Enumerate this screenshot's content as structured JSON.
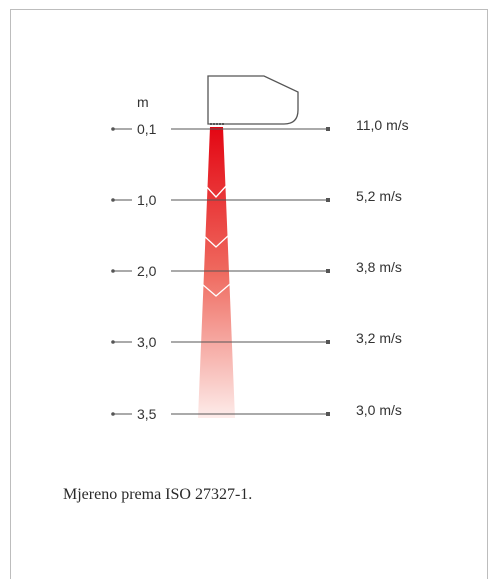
{
  "diagram": {
    "unit_label": "m",
    "levels": [
      {
        "distance": "0,1",
        "speed": "11,0 m/s"
      },
      {
        "distance": "1,0",
        "speed": "5,2 m/s"
      },
      {
        "distance": "2,0",
        "speed": "3,8 m/s"
      },
      {
        "distance": "3,0",
        "speed": "3,2 m/s"
      },
      {
        "distance": "3,5",
        "speed": "3,0 m/s"
      }
    ],
    "colors": {
      "jet_top": "#e30613",
      "jet_bottom": "#fdecea",
      "line": "#555555",
      "text": "#333333"
    }
  },
  "caption": "Mjereno prema ISO 27327-1."
}
